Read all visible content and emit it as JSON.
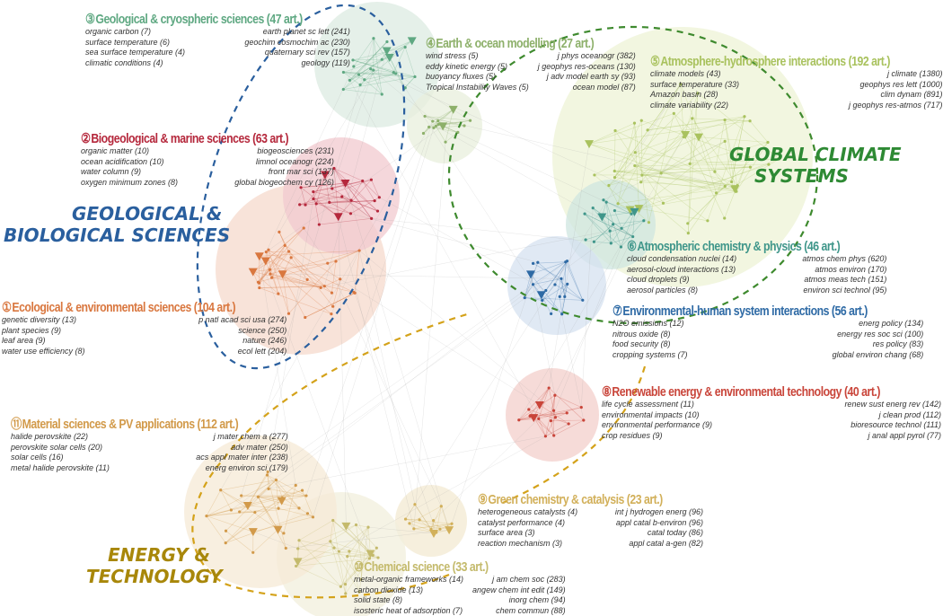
{
  "group_labels": {
    "geo_bio": {
      "line1": "GEOLOGICAL &",
      "line2": "BIOLOGICAL SCIENCES",
      "color": "#2a5f9e"
    },
    "climate": {
      "line1": "GLOBAL CLIMATE",
      "line2": "SYSTEMS",
      "color": "#2e8a34"
    },
    "energy": {
      "line1": "ENERGY &",
      "line2": "TECHNOLOGY",
      "color": "#a8870a"
    }
  },
  "clusters": [
    {
      "num": "①",
      "title": "Ecological & environmental sciences (104 art.)",
      "color": "#d9773f",
      "keywords": [
        "genetic diversity (13)",
        "plant species (9)",
        "leaf area (9)",
        "water use efficiency (8)"
      ],
      "journals": [
        "p natl acad sci usa (274)",
        "science (250)",
        "nature (246)",
        "ecol lett (204)"
      ]
    },
    {
      "num": "②",
      "title": "Biogeological & marine sciences (63 art.)",
      "color": "#b5283c",
      "keywords": [
        "organic matter (10)",
        "ocean acidification (10)",
        "water column (9)",
        "oxygen minimum zones (8)"
      ],
      "journals": [
        "biogeosciences (231)",
        "limnol oceanogr (224)",
        "front mar sci (137)",
        "global biogeochem cy (126)"
      ]
    },
    {
      "num": "③",
      "title": "Geological & cryospheric sciences (47 art.)",
      "color": "#5fa882",
      "keywords": [
        "organic carbon (7)",
        "surface temperature (6)",
        "sea surface temperature (4)",
        "climatic conditions (4)"
      ],
      "journals": [
        "earth planet sc lett (241)",
        "geochim cosmochim ac (230)",
        "quaternary sci rev (157)",
        "geology (119)"
      ]
    },
    {
      "num": "④",
      "title": "Earth & ocean modelling (27 art.)",
      "color": "#8db06a",
      "keywords": [
        "wind stress (5)",
        "eddy kinetic energy (5)",
        "buoyancy fluxes (5)",
        "Tropical Instability Waves (5)"
      ],
      "journals": [
        "j phys oceanogr (382)",
        "j geophys res-oceans (130)",
        "j adv model earth sy (93)",
        "ocean model (87)"
      ]
    },
    {
      "num": "⑤",
      "title": "Atmosphere-hydrosphere interactions (192 art.)",
      "color": "#a9c25e",
      "keywords": [
        "climate models (43)",
        "surface temperature (33)",
        "Amazon basin (28)",
        "climate variability (22)"
      ],
      "journals": [
        "j climate (1380)",
        "geophys res lett (1000)",
        "clim dynam (891)",
        "j geophys res-atmos (717)"
      ]
    },
    {
      "num": "⑥",
      "title": "Atmospheric chemistry & physics (46 art.)",
      "color": "#3f968a",
      "keywords": [
        "cloud condensation nuclei (14)",
        "aerosol-cloud interactions (13)",
        "cloud droplets (9)",
        "aerosol particles (8)"
      ],
      "journals": [
        "atmos chem phys (620)",
        "atmos environ (170)",
        "atmos meas tech (151)",
        "environ sci technol (95)"
      ]
    },
    {
      "num": "⑦",
      "title": "Environmental-human system interactions (56 art.)",
      "color": "#2e6aa5",
      "keywords": [
        "N2O emissions (12)",
        "nitrous oxide (8)",
        "food security (8)",
        "cropping systems (7)"
      ],
      "journals": [
        "energ policy (134)",
        "energy res soc sci (100)",
        "res policy (83)",
        "global environ chang (68)"
      ]
    },
    {
      "num": "⑧",
      "title": "Renewable energy & environmental technology (40 art.)",
      "color": "#c9453a",
      "keywords": [
        "life cycle assessment (11)",
        "environmental impacts (10)",
        "environmental performance (9)",
        "crop residues (9)"
      ],
      "journals": [
        "renew sust energ rev (142)",
        "j clean prod (112)",
        "bioresource technol (111)",
        "j anal appl pyrol (77)"
      ]
    },
    {
      "num": "⑨",
      "title": "Green chemistry & catalysis (23 art.)",
      "color": "#d2b05a",
      "keywords": [
        "heterogeneous catalysts (4)",
        "catalyst performance (4)",
        "surface area (3)",
        "reaction mechanism (3)"
      ],
      "journals": [
        "int j hydrogen energ (96)",
        "appl catal b-environ (96)",
        "catal today (86)",
        "appl catal a-gen (82)"
      ]
    },
    {
      "num": "⑩",
      "title": "Chemical science (33 art.)",
      "color": "#c4ba6c",
      "keywords": [
        "metal-organic frameworks (14)",
        "carbon dioxide (13)",
        "solid state (8)",
        "isosteric heat of adsorption (7)"
      ],
      "journals": [
        "j am chem soc (283)",
        "angew chem int edit (149)",
        "inorg chem (94)",
        "chem commun (88)"
      ]
    },
    {
      "num": "⑪",
      "title": "Material sciences & PV applications (112 art.)",
      "color": "#d29a4a",
      "keywords": [
        "halide perovskite (22)",
        "perovskite solar cells (20)",
        "solar cells (16)",
        "metal halide perovskite (11)"
      ],
      "journals": [
        "j mater chem a (277)",
        "adv mater (250)",
        "acs appl mater inter (238)",
        "energ environ sci (179)"
      ]
    }
  ]
}
